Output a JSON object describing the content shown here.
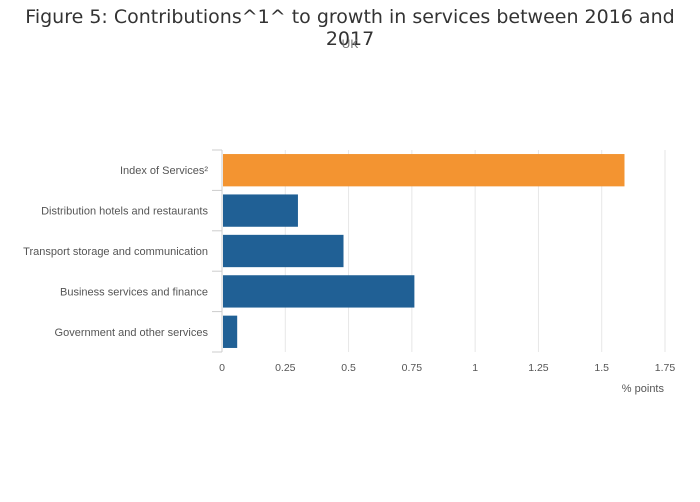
{
  "chart_data": {
    "type": "bar",
    "orientation": "horizontal",
    "title": "Figure 5: Contributions^1^ to growth in services between 2016 and 2017",
    "subtitle": "UK",
    "xlabel": "% points",
    "ylabel": "",
    "xlim": [
      0,
      1.75
    ],
    "xticks": [
      "0",
      "0.25",
      "0.5",
      "0.75",
      "1",
      "1.25",
      "1.5",
      "1.75"
    ],
    "categories": [
      "Index of Services²",
      "Distribution hotels and restaurants",
      "Transport storage and communication",
      "Business services and finance",
      "Government and other services"
    ],
    "values": [
      1.59,
      0.3,
      0.48,
      0.76,
      0.06
    ],
    "bar_colors": [
      "#f39431",
      "#206095",
      "#206095",
      "#206095",
      "#206095"
    ],
    "grid": true,
    "legend": "none"
  }
}
